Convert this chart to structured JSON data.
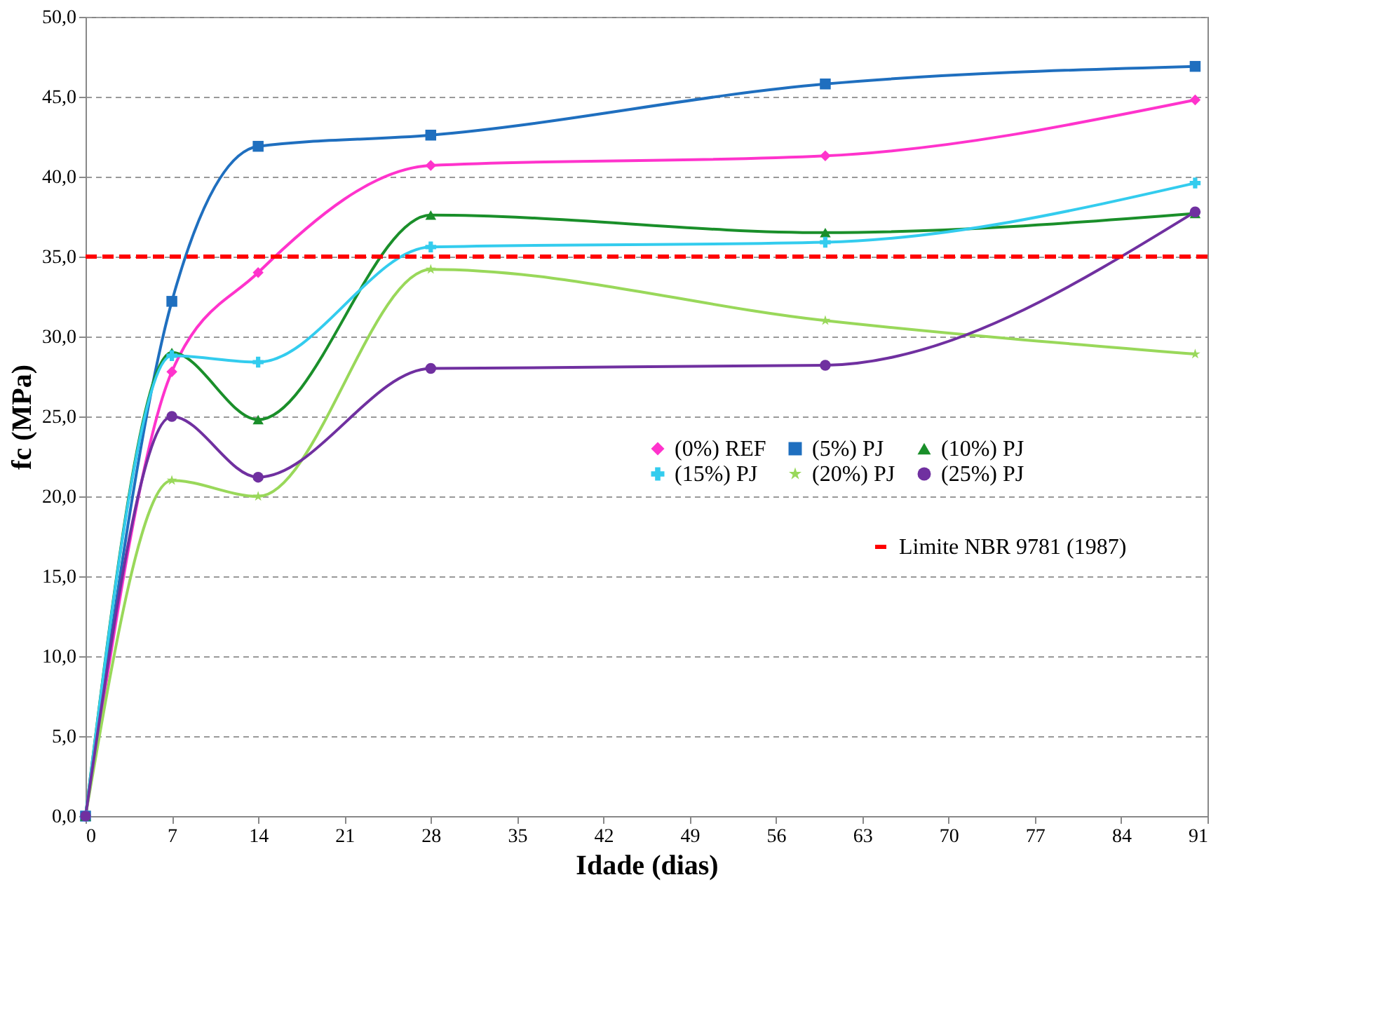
{
  "chart_data": {
    "type": "line",
    "xlabel": "Idade (dias)",
    "ylabel": "fc (MPa)",
    "x": [
      0,
      7,
      14,
      28,
      60,
      90
    ],
    "series": [
      {
        "name": "(0%) REF",
        "color": "#ff33cc",
        "marker": "diamond",
        "values": [
          0,
          27.8,
          34.0,
          40.7,
          41.3,
          44.8
        ]
      },
      {
        "name": "(5%) PJ",
        "color": "#1f6fbf",
        "marker": "square",
        "values": [
          0,
          32.2,
          41.9,
          42.6,
          45.8,
          46.9
        ]
      },
      {
        "name": "(10%) PJ",
        "color": "#1a8f2a",
        "marker": "triangle",
        "values": [
          0,
          29.0,
          24.8,
          37.6,
          36.5,
          37.7
        ]
      },
      {
        "name": "(15%) PJ",
        "color": "#33ccee",
        "marker": "cross",
        "values": [
          0,
          28.8,
          28.4,
          35.6,
          35.9,
          39.6
        ]
      },
      {
        "name": "(20%) PJ",
        "color": "#99d85a",
        "marker": "star",
        "values": [
          0,
          21.0,
          20.0,
          34.2,
          31.0,
          28.9
        ]
      },
      {
        "name": "(25%) PJ",
        "color": "#7030a0",
        "marker": "circle",
        "values": [
          0,
          25.0,
          21.2,
          28.0,
          28.2,
          37.8
        ]
      }
    ],
    "ref_lines": [
      {
        "axis": "y",
        "value": 35,
        "label": "Limite NBR 9781 (1987)",
        "color": "#ff0000",
        "line_style": "dashed"
      }
    ],
    "xlim": [
      0,
      91
    ],
    "xticks": [
      0,
      7,
      14,
      21,
      28,
      35,
      42,
      49,
      56,
      63,
      70,
      77,
      84,
      91
    ],
    "ylim": [
      0,
      50
    ],
    "yticks": [
      {
        "value": 0,
        "label": "0,0"
      },
      {
        "value": 5,
        "label": "5,0"
      },
      {
        "value": 10,
        "label": "10,0"
      },
      {
        "value": 15,
        "label": "15,0"
      },
      {
        "value": 20,
        "label": "20,0"
      },
      {
        "value": 25,
        "label": "25,0"
      },
      {
        "value": 30,
        "label": "30,0"
      },
      {
        "value": 35,
        "label": "35,0"
      },
      {
        "value": 40,
        "label": "40,0"
      },
      {
        "value": 45,
        "label": "45,0"
      },
      {
        "value": 50,
        "label": "50,0"
      }
    ],
    "grid": "y",
    "legend": "right",
    "line_style": "solid"
  }
}
